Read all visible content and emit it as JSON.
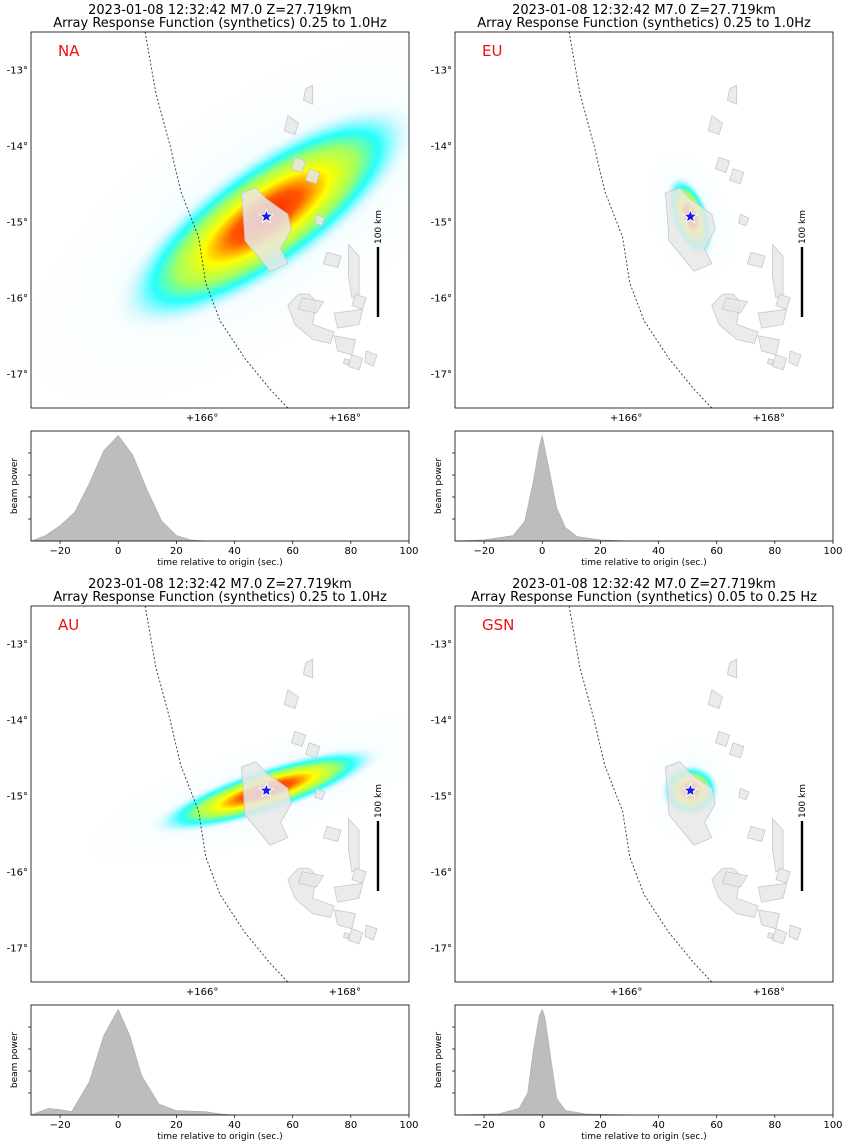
{
  "colors": {
    "panel_label": "#ee1111",
    "star_fill": "#1a1aee",
    "star_stroke": "#ffffff",
    "land": "#e8e8e8",
    "trench": "#333333",
    "beam_fill": "#bdbdbd",
    "heat_cool": "#00ffff",
    "heat_mid": "#ffff00",
    "heat_hot": "#ff1a00"
  },
  "chart_data": [
    {
      "type": "heatmap",
      "panel": "NA",
      "title_line1": "2023-01-08 12:32:42 M7.0 Z=27.719km",
      "title_line2": "Array Response Function (synthetics) 0.25 to 1.0Hz",
      "label": "NA",
      "lon_ticks": [
        "+166°",
        "+168°"
      ],
      "lon_tick_values": [
        166,
        168
      ],
      "lat_ticks": [
        "-13°",
        "-14°",
        "-15°",
        "-16°",
        "-17°"
      ],
      "lat_tick_values": [
        -13,
        -14,
        -15,
        -16,
        -17
      ],
      "xlim": [
        163.6,
        168.9
      ],
      "ylim": [
        -17.45,
        -12.5
      ],
      "epicenter": {
        "lon": 166.9,
        "lat": -14.93
      },
      "scale_bar": "100 km",
      "response_peak": {
        "lon": 166.9,
        "lat": -14.93,
        "major_deg": 2.6,
        "minor_deg": 0.85,
        "azimuth_deg": 35
      },
      "beam": {
        "xlabel": "time relative to origin (sec.)",
        "ylabel": "beam power",
        "xlim": [
          -30,
          100
        ],
        "xticks": [
          -20,
          0,
          20,
          40,
          60,
          80,
          100
        ],
        "t": [
          -30,
          -25,
          -20,
          -15,
          -10,
          -5,
          0,
          5,
          10,
          15,
          20,
          25,
          30
        ],
        "power": [
          0.0,
          0.05,
          0.14,
          0.26,
          0.52,
          0.82,
          0.96,
          0.78,
          0.46,
          0.18,
          0.05,
          0.01,
          0.0
        ]
      }
    },
    {
      "type": "heatmap",
      "panel": "EU",
      "title_line1": "2023-01-08 12:32:42 M7.0 Z=27.719km",
      "title_line2": "Array Response Function (synthetics) 0.25 to 1.0Hz",
      "label": "EU",
      "lon_ticks": [
        "+166°",
        "+168°"
      ],
      "lon_tick_values": [
        166,
        168
      ],
      "lat_ticks": [
        "-13°",
        "-14°",
        "-15°",
        "-16°",
        "-17°"
      ],
      "lat_tick_values": [
        -13,
        -14,
        -15,
        -16,
        -17
      ],
      "xlim": [
        163.6,
        168.9
      ],
      "ylim": [
        -17.45,
        -12.5
      ],
      "epicenter": {
        "lon": 166.9,
        "lat": -14.93
      },
      "scale_bar": "100 km",
      "response_peak": {
        "lon": 166.9,
        "lat": -14.93,
        "major_deg": 0.62,
        "minor_deg": 0.28,
        "azimuth_deg": 110
      },
      "beam": {
        "xlabel": "time relative to origin (sec.)",
        "ylabel": "beam power",
        "xlim": [
          -30,
          100
        ],
        "xticks": [
          -20,
          0,
          20,
          40,
          60,
          80,
          100
        ],
        "t": [
          -30,
          -20,
          -10,
          -6,
          -3,
          -1,
          0,
          2,
          5,
          8,
          12,
          20,
          30
        ],
        "power": [
          0.0,
          0.01,
          0.05,
          0.18,
          0.55,
          0.86,
          0.96,
          0.7,
          0.3,
          0.12,
          0.04,
          0.01,
          0.0
        ]
      }
    },
    {
      "type": "heatmap",
      "panel": "AU",
      "title_line1": "2023-01-08 12:32:42 M7.0 Z=27.719km",
      "title_line2": "Array Response Function (synthetics) 0.25 to 1.0Hz",
      "label": "AU",
      "lon_ticks": [
        "+166°",
        "+168°"
      ],
      "lon_tick_values": [
        166,
        168
      ],
      "lat_ticks": [
        "-13°",
        "-14°",
        "-15°",
        "-16°",
        "-17°"
      ],
      "lat_tick_values": [
        -13,
        -14,
        -15,
        -16,
        -17
      ],
      "xlim": [
        163.6,
        168.9
      ],
      "ylim": [
        -17.45,
        -12.5
      ],
      "epicenter": {
        "lon": 166.9,
        "lat": -14.93
      },
      "scale_bar": "100 km",
      "response_peak": {
        "lon": 166.9,
        "lat": -14.93,
        "major_deg": 1.75,
        "minor_deg": 0.34,
        "azimuth_deg": 18
      },
      "beam": {
        "xlabel": "time relative to origin (sec.)",
        "ylabel": "beam power",
        "xlim": [
          -30,
          100
        ],
        "xticks": [
          -20,
          0,
          20,
          40,
          60,
          80,
          100
        ],
        "t": [
          -30,
          -24,
          -20,
          -16,
          -10,
          -5,
          0,
          4,
          8,
          14,
          20,
          30,
          35,
          40
        ],
        "power": [
          0.0,
          0.06,
          0.05,
          0.03,
          0.3,
          0.72,
          0.96,
          0.72,
          0.36,
          0.1,
          0.04,
          0.03,
          0.01,
          0.0
        ]
      }
    },
    {
      "type": "heatmap",
      "panel": "GSN",
      "title_line1": "2023-01-08 12:32:42 M7.0 Z=27.719km",
      "title_line2": "Array Response Function (synthetics) 0.05 to 0.25 Hz",
      "label": "GSN",
      "lon_ticks": [
        "+166°",
        "+168°"
      ],
      "lon_tick_values": [
        166,
        168
      ],
      "lat_ticks": [
        "-13°",
        "-14°",
        "-15°",
        "-16°",
        "-17°"
      ],
      "lat_tick_values": [
        -13,
        -14,
        -15,
        -16,
        -17
      ],
      "xlim": [
        163.6,
        168.9
      ],
      "ylim": [
        -17.45,
        -12.5
      ],
      "epicenter": {
        "lon": 166.9,
        "lat": -14.93
      },
      "scale_bar": "100 km",
      "response_peak": {
        "lon": 166.9,
        "lat": -14.93,
        "major_deg": 0.42,
        "minor_deg": 0.38,
        "azimuth_deg": 0
      },
      "beam": {
        "xlabel": "time relative to origin (sec.)",
        "ylabel": "beam power",
        "xlim": [
          -30,
          100
        ],
        "xticks": [
          -20,
          0,
          20,
          40,
          60,
          80,
          100
        ],
        "t": [
          -30,
          -15,
          -8,
          -5,
          -3,
          -1,
          0,
          1,
          3,
          5,
          8,
          15,
          30
        ],
        "power": [
          0.0,
          0.01,
          0.06,
          0.2,
          0.6,
          0.9,
          0.96,
          0.88,
          0.5,
          0.15,
          0.04,
          0.01,
          0.0
        ]
      }
    }
  ]
}
